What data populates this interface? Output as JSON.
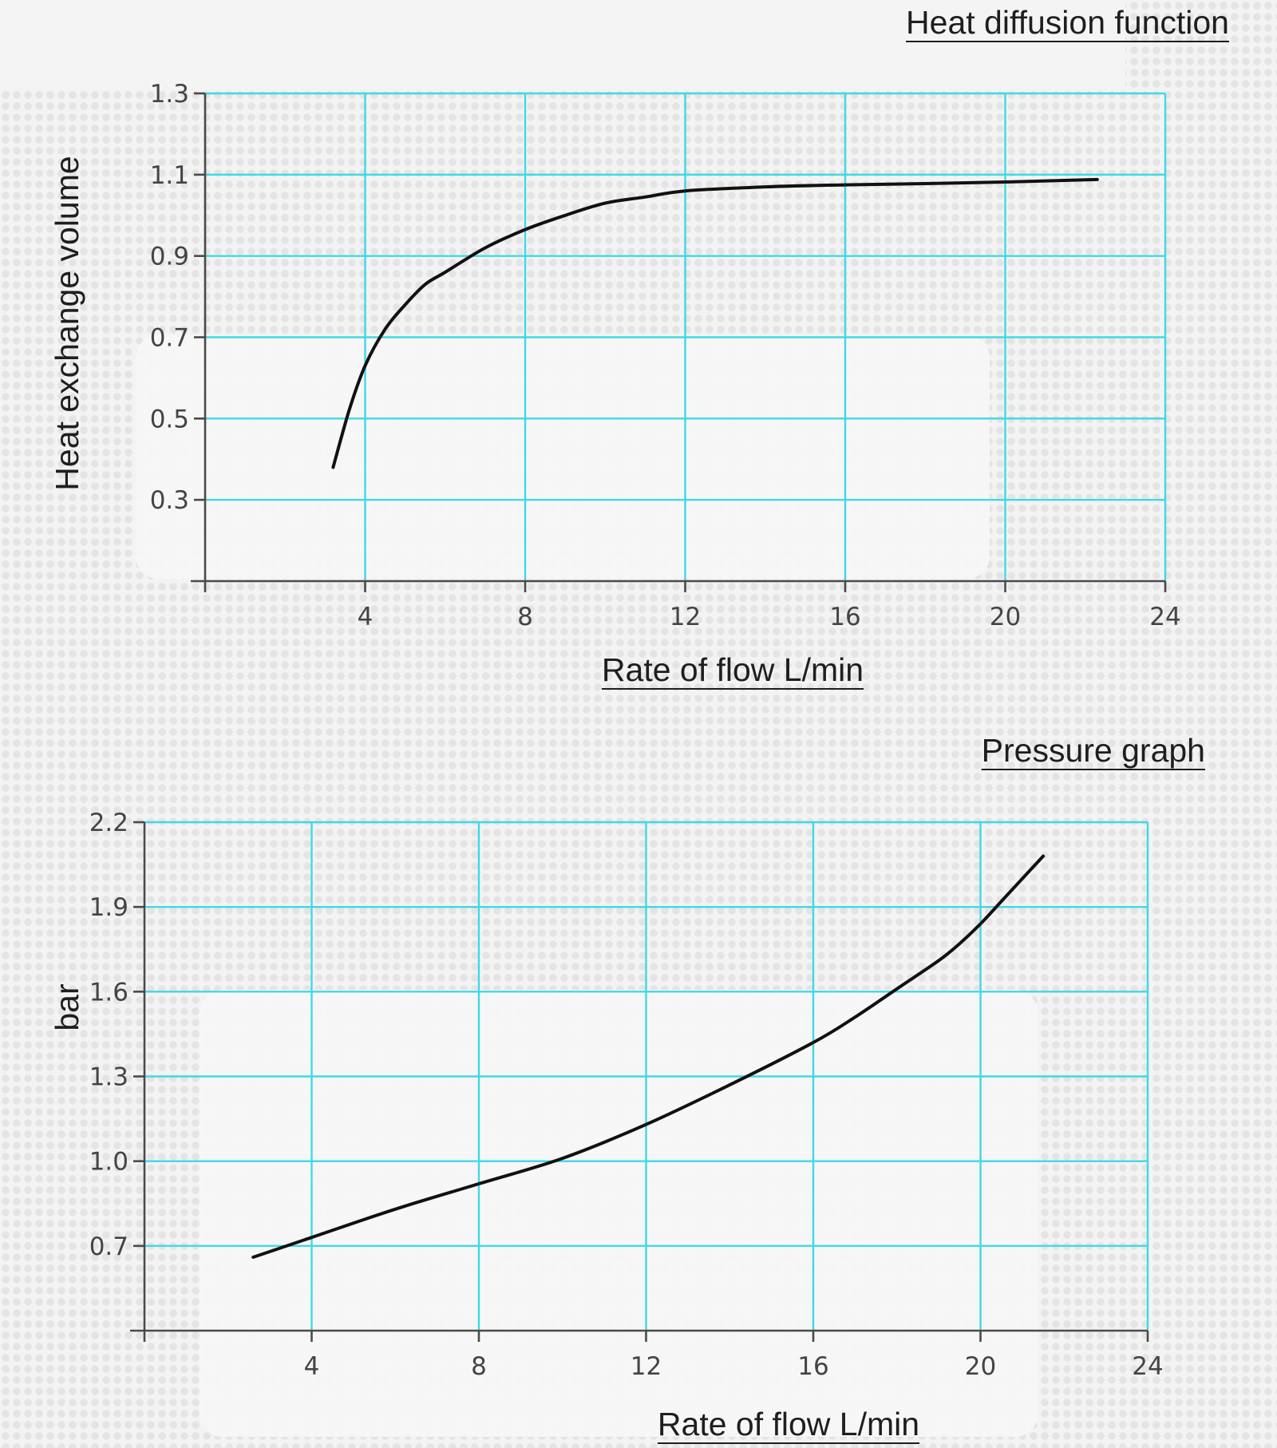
{
  "chart_data": [
    {
      "type": "line",
      "title": "Heat diffusion function",
      "xlabel": "Rate of flow L/min",
      "ylabel": "Heat exchange volume",
      "xlim": [
        0,
        24
      ],
      "ylim": [
        0.1,
        1.3
      ],
      "xticks": [
        4,
        8,
        12,
        16,
        20,
        24
      ],
      "yticks": [
        0.3,
        0.5,
        0.7,
        0.9,
        1.1,
        1.3
      ],
      "ytick_labels": [
        "0.3",
        "0.5",
        "0.7",
        "0.9",
        "1.1",
        "1.3"
      ],
      "grid": true,
      "series": [
        {
          "x": [
            3.2,
            3.6,
            4.0,
            4.5,
            5.0,
            5.5,
            6.0,
            7.0,
            8.0,
            9.0,
            10.0,
            11.0,
            12.0,
            14.0,
            16.0,
            18.0,
            20.0,
            22.3
          ],
          "y": [
            0.38,
            0.52,
            0.63,
            0.72,
            0.78,
            0.83,
            0.86,
            0.92,
            0.965,
            1.0,
            1.03,
            1.045,
            1.06,
            1.07,
            1.075,
            1.078,
            1.082,
            1.088
          ]
        }
      ]
    },
    {
      "type": "line",
      "title": "Pressure graph",
      "xlabel": "Rate of flow L/min",
      "ylabel": "bar",
      "xlim": [
        0,
        24
      ],
      "ylim": [
        0.4,
        2.2
      ],
      "xticks": [
        4,
        8,
        12,
        16,
        20,
        24
      ],
      "yticks": [
        0.7,
        1.0,
        1.3,
        1.6,
        1.9,
        2.2
      ],
      "ytick_labels": [
        "0.7",
        "1.0",
        "1.3",
        "1.6",
        "1.9",
        "2.2"
      ],
      "grid": true,
      "series": [
        {
          "x": [
            2.6,
            4.0,
            6.0,
            8.0,
            10.0,
            12.0,
            14.0,
            16.0,
            17.0,
            18.0,
            19.0,
            19.5,
            20.0,
            20.5,
            21.0,
            21.5
          ],
          "y": [
            0.66,
            0.73,
            0.83,
            0.92,
            1.01,
            1.13,
            1.27,
            1.42,
            1.51,
            1.61,
            1.71,
            1.77,
            1.84,
            1.92,
            2.0,
            2.08
          ]
        }
      ]
    }
  ]
}
